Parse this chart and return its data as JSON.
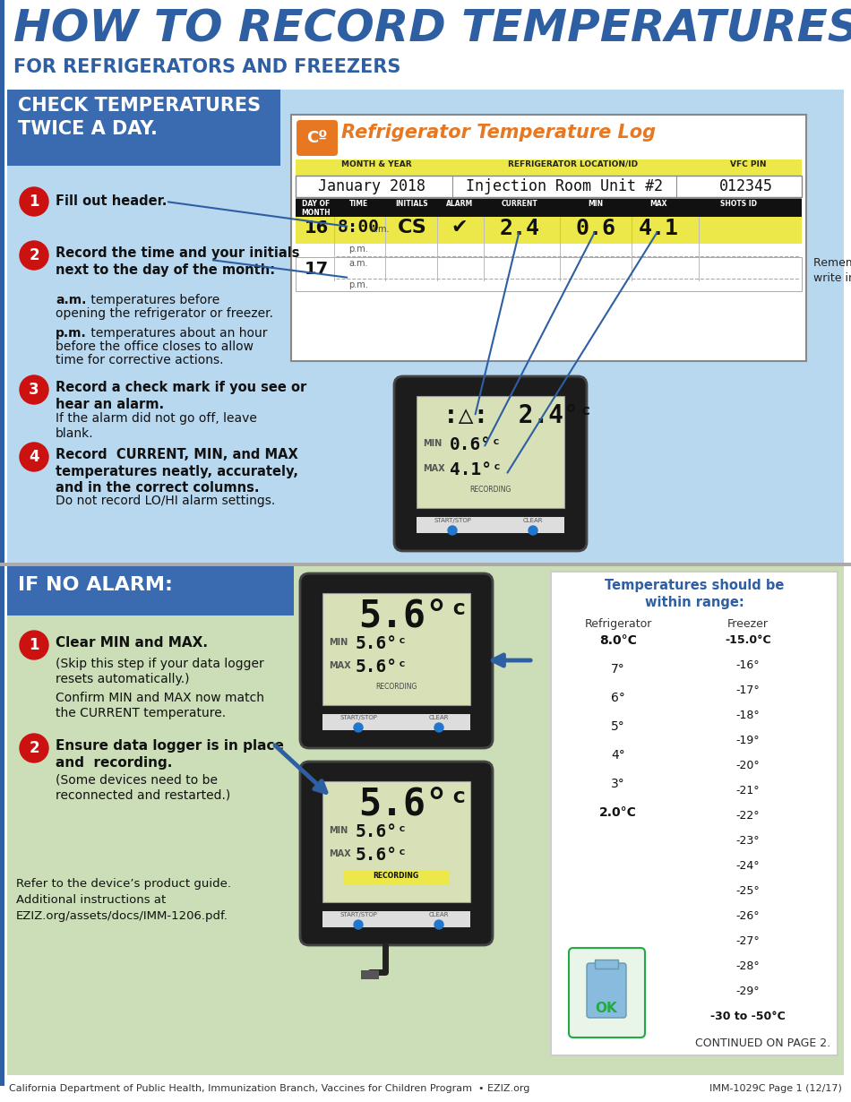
{
  "title_line1": "HOW TO RECORD TEMPERATURES (Cº)",
  "title_line2": "FOR REFRIGERATORS AND FREEZERS",
  "title_color": "#2E5FA3",
  "section1_bg": "#b8d8f0",
  "section2_bg": "#ccdeb8",
  "header1_bg": "#3a6ab0",
  "header2_bg": "#3a6ab0",
  "circle_color": "#cc1111",
  "log_orange": "#E87722",
  "log_yellow_bg": "#EDE84A",
  "footer_left": "California Department of Public Health, Immunization Branch, Vaccines for Children Program  • EZIZ.org",
  "footer_right": "IMM-1029C Page 1 (12/17)",
  "continued": "CONTINUED ON PAGE 2.",
  "refer_text": "Refer to the device’s product guide.\nAdditional instructions at\nEZIZ.org/assets/docs/IMM-1206.pdf.",
  "temp_range_title": "Temperatures should be\nwithin range:",
  "temp_range_fridge_label": "Refrigerator",
  "temp_range_freezer_label": "Freezer",
  "temp_range_fridge": [
    "8.0°C",
    "7°",
    "6°",
    "5°",
    "4°",
    "3°",
    "2.0°C"
  ],
  "temp_range_freezer": [
    "-15.0°C",
    "-16°",
    "-17°",
    "-18°",
    "-19°",
    "-20°",
    "-21°",
    "-22°",
    "-23°",
    "-24°",
    "-25°",
    "-26°",
    "-27°",
    "-28°",
    "-29°",
    "-30 to -50°C"
  ]
}
